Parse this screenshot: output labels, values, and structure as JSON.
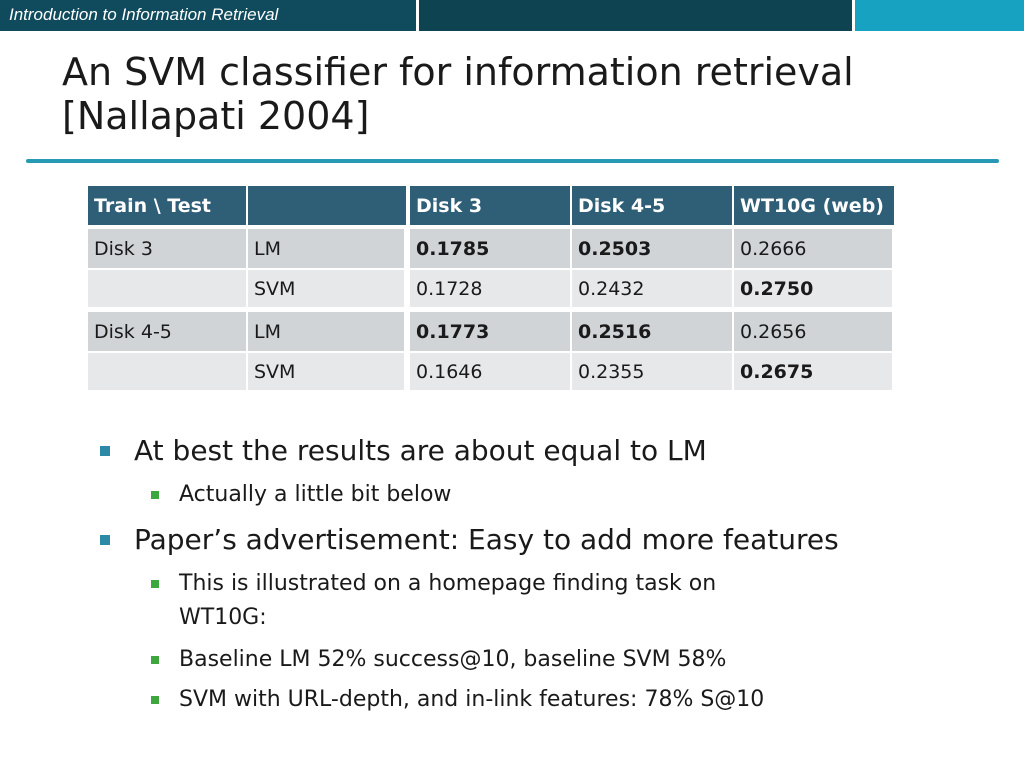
{
  "header": {
    "course_title": "Introduction to Information Retrieval",
    "accent": "#17a2c1",
    "dark": "#0f4b5d"
  },
  "slide": {
    "title_line1": "An SVM classifier for information retrieval",
    "title_line2": "[Nallapati 2004]"
  },
  "table": {
    "headers": [
      "Train \\ Test",
      "",
      "Disk 3",
      "Disk 4-5",
      "WT10G (web)"
    ],
    "rows": [
      [
        "Disk 3",
        "LM",
        "0.1785",
        "0.2503",
        "0.2666"
      ],
      [
        "",
        "SVM",
        "0.1728",
        "0.2432",
        "0.2750"
      ],
      [
        "Disk 4-5",
        "LM",
        "0.1773",
        "0.2516",
        "0.2656"
      ],
      [
        "",
        "SVM",
        "0.1646",
        "0.2355",
        "0.2675"
      ]
    ],
    "bold_cells": [
      [
        0,
        2
      ],
      [
        0,
        3
      ],
      [
        1,
        4
      ],
      [
        2,
        2
      ],
      [
        2,
        3
      ],
      [
        3,
        4
      ]
    ]
  },
  "bullets": [
    {
      "level": 1,
      "text": "At best the results are about equal to LM"
    },
    {
      "level": 2,
      "text": "Actually a little bit below"
    },
    {
      "level": 1,
      "text": "Paper’s advertisement: Easy to add more features"
    },
    {
      "level": 2,
      "text": "This is illustrated on a homepage finding task on"
    },
    {
      "level": 2,
      "text": "WT10G:",
      "continuation": true
    },
    {
      "level": 2,
      "text": "Baseline LM 52% success@10, baseline SVM 58%"
    },
    {
      "level": 2,
      "text": "SVM with URL-depth, and in-link features: 78% S@10"
    }
  ]
}
